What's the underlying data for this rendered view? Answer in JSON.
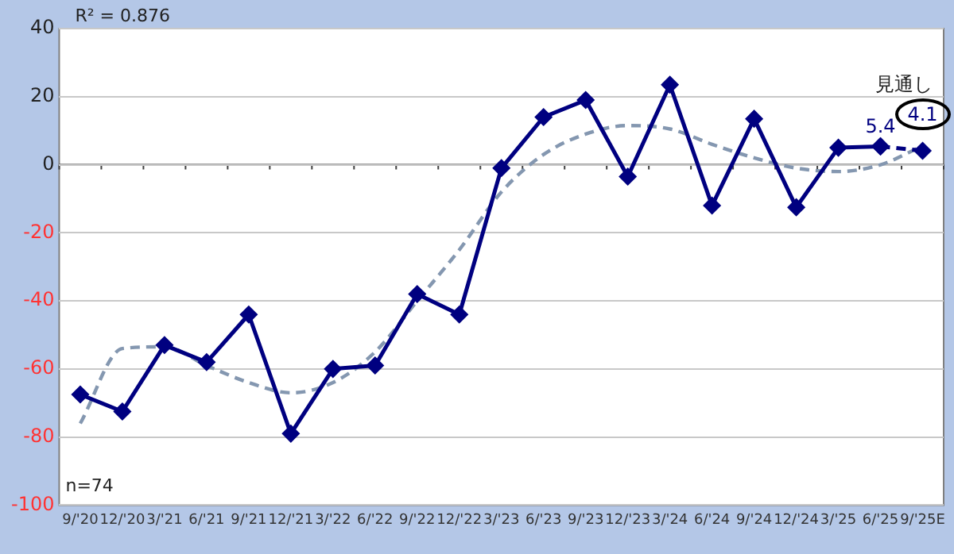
{
  "chart_data": {
    "type": "line",
    "categories": [
      "9/'20",
      "12/'20",
      "3/'21",
      "6/'21",
      "9/'21",
      "12/'21",
      "3/'22",
      "6/'22",
      "9/'22",
      "12/'22",
      "3/'23",
      "6/'23",
      "9/'23",
      "12/'23",
      "3/'24",
      "6/'24",
      "9/'24",
      "12/'24",
      "3/'25",
      "6/'25",
      "9/'25E"
    ],
    "series": [
      {
        "color": "#000080",
        "marker": "diamond",
        "line_style": "solid",
        "values": [
          -67.5,
          -72.5,
          -53,
          -58,
          -44,
          -79,
          -60,
          -59,
          -38,
          -44,
          -1,
          14,
          19,
          -3.5,
          23.5,
          -12,
          13.5,
          -12.5,
          5,
          5.4,
          null
        ],
        "value_labels": [
          null,
          null,
          null,
          null,
          null,
          null,
          null,
          null,
          null,
          null,
          null,
          null,
          null,
          null,
          null,
          null,
          null,
          null,
          null,
          "5.4",
          null
        ]
      },
      {
        "color": "#000080",
        "marker": "diamond",
        "line_style": "dashed",
        "values": [
          null,
          null,
          null,
          null,
          null,
          null,
          null,
          null,
          null,
          null,
          null,
          null,
          null,
          null,
          null,
          null,
          null,
          null,
          null,
          5.4,
          4.1
        ],
        "value_labels": [
          null,
          null,
          null,
          null,
          null,
          null,
          null,
          null,
          null,
          null,
          null,
          null,
          null,
          null,
          null,
          null,
          null,
          null,
          null,
          null,
          "4.1"
        ]
      },
      {
        "type": "line",
        "color": "#8497b0",
        "marker": "none",
        "line_style": "dashed",
        "x": [
          "9/'20",
          "12/'20",
          "3/'21",
          "6/'21",
          "9/'21",
          "12/'21",
          "3/'22",
          "6/'22",
          "9/'22",
          "12/'22",
          "3/'23",
          "6/'23",
          "9/'23",
          "12/'23",
          "3/'24",
          "6/'24",
          "9/'24",
          "12/'24",
          "3/'25",
          "6/'25",
          "9/'25E"
        ],
        "values": [
          -76,
          -54,
          -53.5,
          -59,
          -64,
          -67,
          -64,
          -55,
          -40,
          -25,
          -8,
          3,
          9,
          11.5,
          10.5,
          6,
          2,
          -1,
          -2,
          0,
          5.5
        ]
      }
    ],
    "ylim": [
      -100,
      40
    ],
    "yticks": [
      -100,
      -80,
      -60,
      -40,
      -20,
      0,
      20,
      40
    ],
    "grid": "y",
    "legend": false,
    "annotations": [
      "R² = 0.876",
      "n=74",
      {
        "text": "見通し",
        "x": "9/'25E",
        "y": 4.1
      }
    ]
  }
}
